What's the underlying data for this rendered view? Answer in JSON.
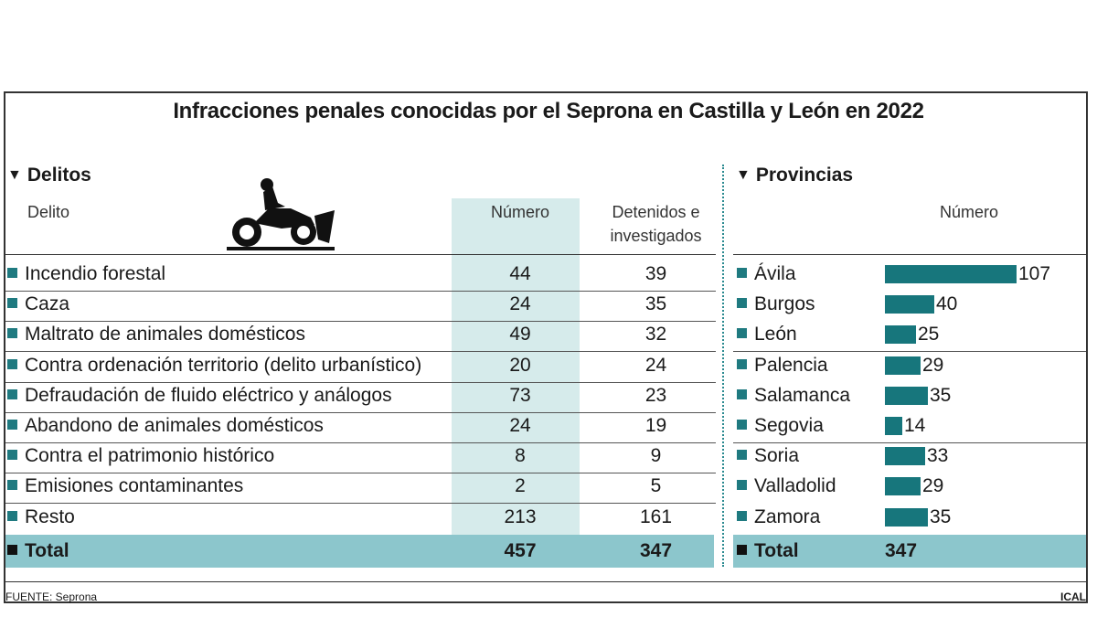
{
  "title": "Infracciones penales conocidas por el Seprona en Castilla y León en 2022",
  "delitos": {
    "heading": "Delitos",
    "col_delito": "Delito",
    "col_numero": "Número",
    "col_detenidos_1": "Detenidos e",
    "col_detenidos_2": "investigados",
    "total_label": "Total",
    "total_numero": "457",
    "total_detenidos": "347"
  },
  "provincias": {
    "heading": "Provincias",
    "col_numero": "Número",
    "total_label": "Total",
    "total_numero": "347"
  },
  "footer": {
    "source": "FUENTE: Seprona",
    "credit": "ICAL"
  },
  "colors": {
    "accent": "#17767c",
    "band": "#d6ebeb",
    "total_band": "#8cc6cc"
  },
  "icons": [
    "triangle-down-icon",
    "motorcycle-rider-icon",
    "square-bullet-icon"
  ],
  "chart_data": [
    {
      "type": "table",
      "title": "Delitos",
      "columns": [
        "Delito",
        "Número",
        "Detenidos e investigados"
      ],
      "rows": [
        [
          "Incendio forestal",
          "44",
          "39"
        ],
        [
          "Caza",
          "24",
          "35"
        ],
        [
          "Maltrato de animales domésticos",
          "49",
          "32"
        ],
        [
          "Contra ordenación territorio (delito urbanístico)",
          "20",
          "24"
        ],
        [
          "Defraudación de fluido eléctrico y análogos",
          "73",
          "23"
        ],
        [
          "Abandono de animales domésticos",
          "24",
          "19"
        ],
        [
          "Contra el patrimonio histórico",
          "8",
          "9"
        ],
        [
          "Emisiones contaminantes",
          "2",
          "5"
        ],
        [
          "Resto",
          "213",
          "161"
        ]
      ],
      "total": [
        "Total",
        "457",
        "347"
      ]
    },
    {
      "type": "bar",
      "title": "Provincias",
      "categories": [
        "Ávila",
        "Burgos",
        "León",
        "Palencia",
        "Salamanca",
        "Segovia",
        "Soria",
        "Valladolid",
        "Zamora"
      ],
      "values": [
        107,
        40,
        25,
        29,
        35,
        14,
        33,
        29,
        35
      ],
      "xlim": [
        0,
        107
      ]
    }
  ]
}
